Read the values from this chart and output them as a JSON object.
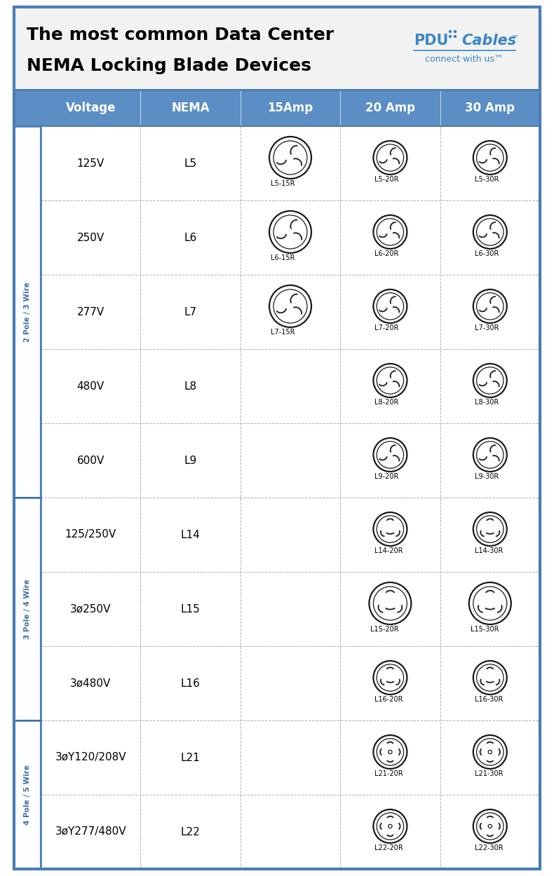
{
  "title_line1": "The most common Data Center",
  "title_line2": "NEMA Locking Blade Devices",
  "header_bg": "#5b8ec4",
  "col_headers": [
    "Voltage",
    "NEMA",
    "15Amp",
    "20 Amp",
    "30 Amp"
  ],
  "row_label_2pole": "2 Pole / 3 Wire",
  "row_label_3pole": "3 Pole / 4 Wire",
  "row_label_4pole": "4 Pole / 5 Wire",
  "rows": [
    {
      "voltage": "125V",
      "nema": "L5",
      "plugs": [
        "L5-15R",
        "L5-20R",
        "L5-30R"
      ],
      "cols": [
        2,
        3,
        4
      ],
      "type": "2pole"
    },
    {
      "voltage": "250V",
      "nema": "L6",
      "plugs": [
        "L6-15R",
        "L6-20R",
        "L6-30R"
      ],
      "cols": [
        2,
        3,
        4
      ],
      "type": "2pole"
    },
    {
      "voltage": "277V",
      "nema": "L7",
      "plugs": [
        "L7-15R",
        "L7-20R",
        "L7-30R"
      ],
      "cols": [
        2,
        3,
        4
      ],
      "type": "2pole"
    },
    {
      "voltage": "480V",
      "nema": "L8",
      "plugs": [
        "L8-20R",
        "L8-30R"
      ],
      "cols": [
        3,
        4
      ],
      "type": "2pole"
    },
    {
      "voltage": "600V",
      "nema": "L9",
      "plugs": [
        "L9-20R",
        "L9-30R"
      ],
      "cols": [
        3,
        4
      ],
      "type": "2pole"
    },
    {
      "voltage": "125/250V",
      "nema": "L14",
      "plugs": [
        "L14-20R",
        "L14-30R"
      ],
      "cols": [
        3,
        4
      ],
      "type": "3pole"
    },
    {
      "voltage": "3ø250V",
      "nema": "L15",
      "plugs": [
        "L15-20R",
        "L15-30R"
      ],
      "cols": [
        3,
        4
      ],
      "type": "3pole"
    },
    {
      "voltage": "3ø480V",
      "nema": "L16",
      "plugs": [
        "L16-20R",
        "L16-30R"
      ],
      "cols": [
        3,
        4
      ],
      "type": "3pole"
    },
    {
      "voltage": "3øY120/208V",
      "nema": "L21",
      "plugs": [
        "L21-20R",
        "L21-30R"
      ],
      "cols": [
        3,
        4
      ],
      "type": "4pole"
    },
    {
      "voltage": "3øY277/480V",
      "nema": "L22",
      "plugs": [
        "L22-20R",
        "L22-30R"
      ],
      "cols": [
        3,
        4
      ],
      "type": "4pole"
    }
  ],
  "outer_border": "#4a7db5",
  "grid_color": "#b0b0b0",
  "side_label_color": "#3a6ea8",
  "pdu_color": "#3a86c8"
}
